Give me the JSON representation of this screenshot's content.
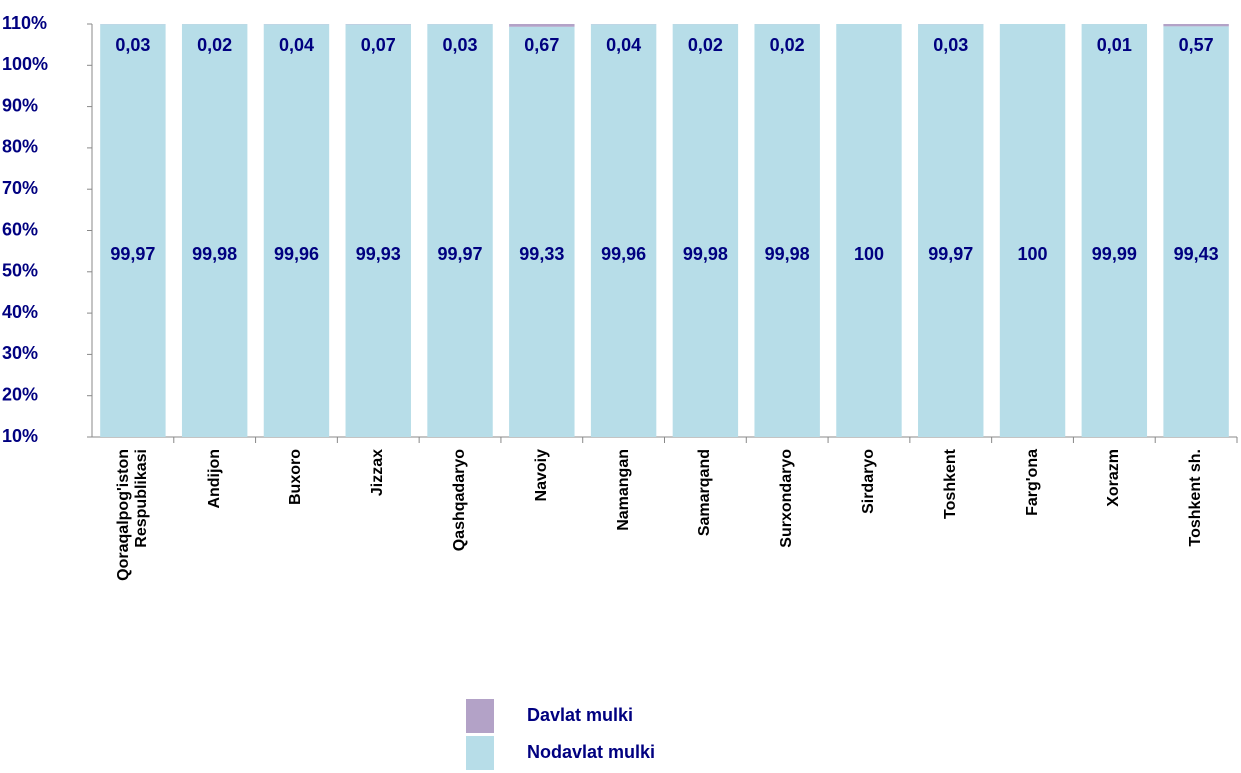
{
  "chart_data": {
    "type": "stacked_bar_percent",
    "categories": [
      "Qoraqalpog'iston Respublikasi",
      "Andijon",
      "Buxoro",
      "Jizzax",
      "Qashqadaryo",
      "Navoiy",
      "Namangan",
      "Samarqand",
      "Surxondaryo",
      "Sirdaryo",
      "Toshkent",
      "Farg'ona",
      "Xorazm",
      "Toshkent sh."
    ],
    "series": [
      {
        "name": "Nodavlat mulki",
        "color": "#b7dde8",
        "values": [
          99.97,
          99.98,
          99.96,
          99.93,
          99.97,
          99.33,
          99.96,
          99.98,
          99.98,
          100,
          99.97,
          100,
          99.99,
          99.43
        ],
        "value_labels": [
          "99,97",
          "99,98",
          "99,96",
          "99,93",
          "99,97",
          "99,33",
          "99,96",
          "99,98",
          "99,98",
          "100",
          "99,97",
          "100",
          "99,99",
          "99,43"
        ]
      },
      {
        "name": "Davlat mulki",
        "color": "#b3a2c7",
        "values": [
          0.03,
          0.02,
          0.04,
          0.07,
          0.03,
          0.67,
          0.04,
          0.02,
          0.02,
          null,
          0.03,
          null,
          0.01,
          0.57
        ],
        "value_labels": [
          "0,03",
          "0,02",
          "0,04",
          "0,07",
          "0,03",
          "0,67",
          "0,04",
          "0,02",
          "0,02",
          null,
          "0,03",
          null,
          "0,01",
          "0,57"
        ]
      }
    ],
    "ylim": [
      10,
      110
    ],
    "yticks": [
      {
        "value": 10,
        "label": "10%"
      },
      {
        "value": 20,
        "label": "20%"
      },
      {
        "value": 30,
        "label": "30%"
      },
      {
        "value": 40,
        "label": "40%"
      },
      {
        "value": 50,
        "label": "50%"
      },
      {
        "value": 60,
        "label": "60%"
      },
      {
        "value": 70,
        "label": "70%"
      },
      {
        "value": 80,
        "label": "80%"
      },
      {
        "value": 90,
        "label": "90%"
      },
      {
        "value": 100,
        "label": "100%"
      },
      {
        "value": 110,
        "label": "110%"
      }
    ]
  }
}
